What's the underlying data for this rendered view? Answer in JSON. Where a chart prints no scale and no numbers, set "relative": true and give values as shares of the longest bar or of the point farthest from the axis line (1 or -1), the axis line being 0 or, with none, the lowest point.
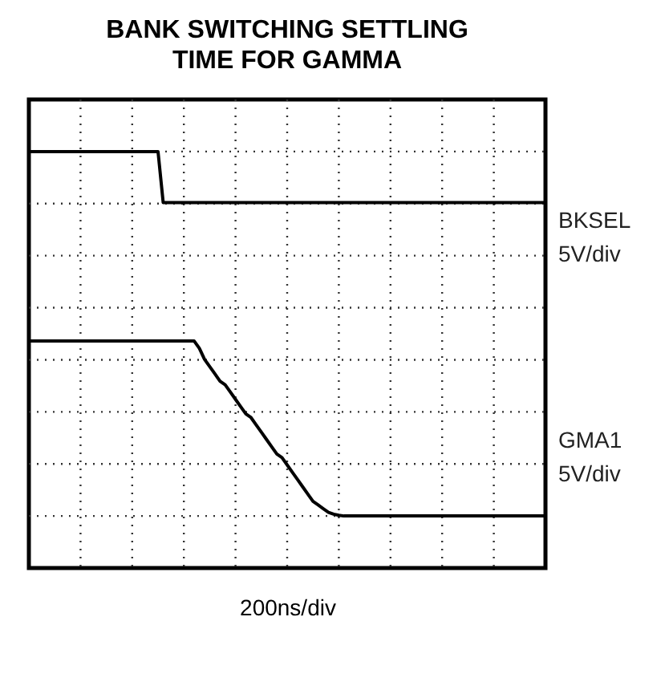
{
  "chart_data": {
    "type": "line",
    "title": "BANK SWITCHING SETTLING TIME FOR GAMMA",
    "xlabel": "200ns/div",
    "relative": true,
    "grid": true,
    "legend": false,
    "categories": [
      null,
      null,
      null,
      null,
      null,
      null,
      null,
      null,
      null,
      null,
      null,
      null,
      null,
      null,
      null,
      null,
      null,
      null,
      null,
      null,
      null,
      null,
      null,
      null,
      null,
      null,
      null,
      null,
      null,
      null,
      null,
      null,
      null,
      null,
      null,
      null,
      null,
      null,
      null,
      null,
      null,
      null,
      null,
      null,
      null,
      null,
      null,
      null,
      null,
      null,
      null,
      null,
      null,
      null,
      null,
      null,
      null,
      null,
      null,
      null,
      null,
      null,
      null,
      null,
      null,
      null,
      null,
      null,
      null,
      null,
      null,
      null,
      null,
      null,
      null,
      null,
      null,
      null,
      null,
      null,
      null,
      null,
      null,
      null,
      null,
      null,
      null,
      null,
      null,
      null,
      null,
      null,
      null,
      null,
      null,
      null,
      null,
      null,
      null,
      null,
      null
    ],
    "series": [
      {
        "name": "BKSEL",
        "color": "#000000",
        "values": [
          1,
          1,
          1,
          1,
          1,
          1,
          1,
          1,
          1,
          1,
          1,
          1,
          1,
          1,
          1,
          1,
          1,
          1,
          1,
          1,
          1,
          1,
          1,
          1,
          1,
          1,
          0.86,
          0.86,
          0.86,
          0.86,
          0.86,
          0.86,
          0.86,
          0.86,
          0.86,
          0.86,
          0.86,
          0.86,
          0.86,
          0.86,
          0.86,
          0.86,
          0.86,
          0.86,
          0.86,
          0.86,
          0.86,
          0.86,
          0.86,
          0.86,
          0.86,
          0.86,
          0.86,
          0.86,
          0.86,
          0.86,
          0.86,
          0.86,
          0.86,
          0.86,
          0.86,
          0.86,
          0.86,
          0.86,
          0.86,
          0.86,
          0.86,
          0.86,
          0.86,
          0.86,
          0.86,
          0.86,
          0.86,
          0.86,
          0.86,
          0.86,
          0.86,
          0.86,
          0.86,
          0.86,
          0.86,
          0.86,
          0.86,
          0.86,
          0.86,
          0.86,
          0.86,
          0.86,
          0.86,
          0.86,
          0.86,
          0.86,
          0.86,
          0.86,
          0.86,
          0.86,
          0.86,
          0.86,
          0.86,
          0.86,
          0.86
        ]
      },
      {
        "name": "GMA1",
        "color": "#000000",
        "values": [
          0.48,
          0.48,
          0.48,
          0.48,
          0.48,
          0.48,
          0.48,
          0.48,
          0.48,
          0.48,
          0.48,
          0.48,
          0.48,
          0.48,
          0.48,
          0.48,
          0.48,
          0.48,
          0.48,
          0.48,
          0.48,
          0.48,
          0.48,
          0.48,
          0.48,
          0.48,
          0.48,
          0.48,
          0.48,
          0.48,
          0.48,
          0.48,
          0.48,
          0.46,
          0.43,
          0.41,
          0.39,
          0.37,
          0.36,
          0.34,
          0.32,
          0.3,
          0.28,
          0.27,
          0.25,
          0.23,
          0.21,
          0.19,
          0.17,
          0.16,
          0.14,
          0.12,
          0.1,
          0.08,
          0.06,
          0.04,
          0.03,
          0.02,
          0.01,
          0.005,
          0.002,
          0,
          0,
          0,
          0,
          0,
          0,
          0,
          0,
          0,
          0,
          0,
          0,
          0,
          0,
          0,
          0,
          0,
          0,
          0,
          0,
          0,
          0,
          0,
          0,
          0,
          0,
          0,
          0,
          0,
          0,
          0,
          0,
          0,
          0,
          0,
          0,
          0,
          0,
          0,
          0
        ]
      }
    ],
    "annotations": [
      "5V/div",
      "5V/div"
    ]
  }
}
